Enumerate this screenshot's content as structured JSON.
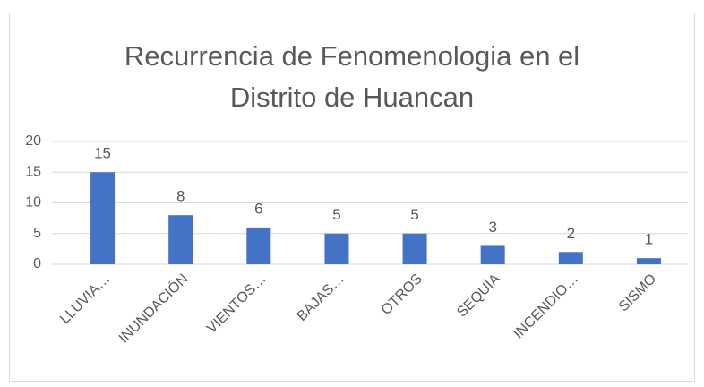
{
  "chart_data": {
    "type": "bar",
    "title": "Recurrencia de Fenomenologia en el Distrito de Huancan",
    "categories": [
      "LLUVIA…",
      "INUNDACIÓN",
      "VIENTOS…",
      "BAJAS…",
      "OTROS",
      "SEQUÍA",
      "INCENDIO…",
      "SISMO"
    ],
    "values": [
      15,
      8,
      6,
      5,
      5,
      3,
      2,
      1
    ],
    "color": "#4472c4",
    "ylim": [
      0,
      20
    ],
    "yticks": [
      0,
      5,
      10,
      15,
      20
    ],
    "grid": true
  }
}
